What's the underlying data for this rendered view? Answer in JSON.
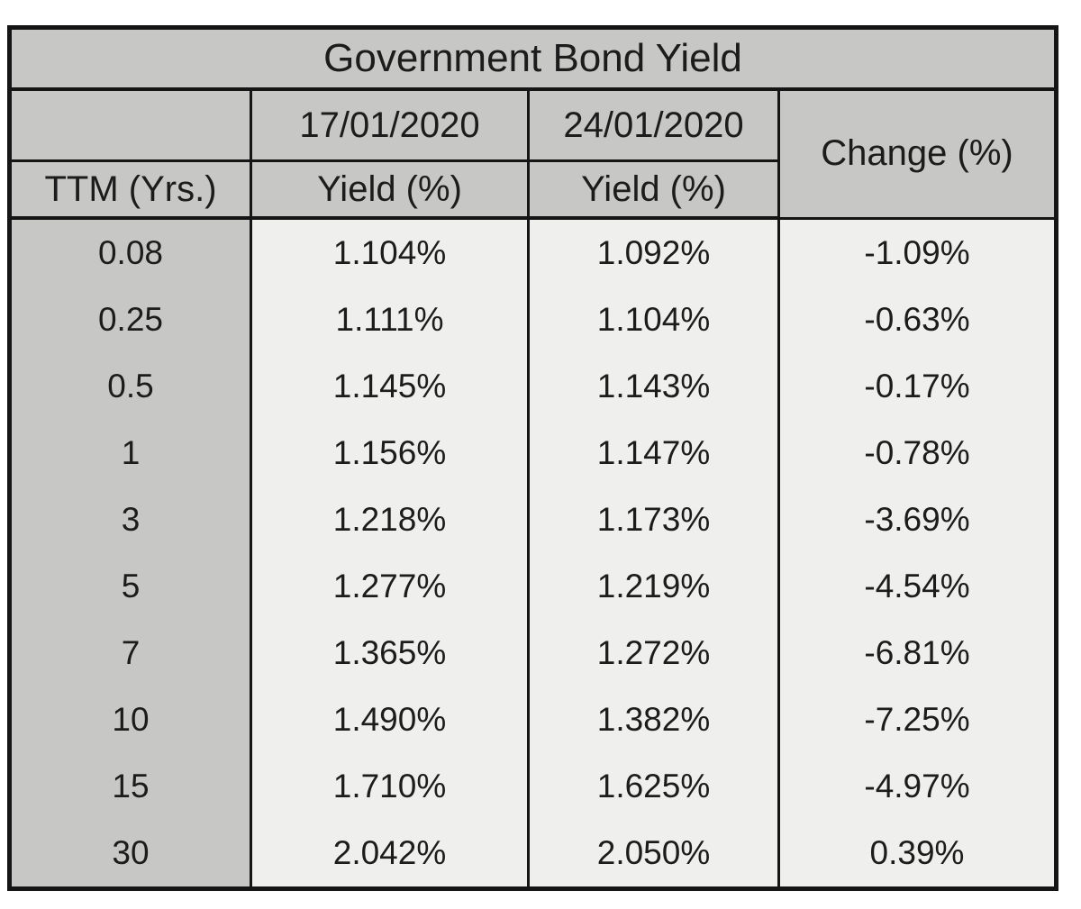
{
  "title": "Government Bond Yield",
  "header": {
    "ttm_label": "TTM (Yrs.)",
    "date1": "17/01/2020",
    "date2": "24/01/2020",
    "yield_label_1": "Yield (%)",
    "yield_label_2": "Yield (%)",
    "change_label": "Change (%)"
  },
  "rows": [
    {
      "ttm": "0.08",
      "yield1": "1.104%",
      "yield2": "1.092%",
      "change": "-1.09%"
    },
    {
      "ttm": "0.25",
      "yield1": "1.111%",
      "yield2": "1.104%",
      "change": "-0.63%"
    },
    {
      "ttm": "0.5",
      "yield1": "1.145%",
      "yield2": "1.143%",
      "change": "-0.17%"
    },
    {
      "ttm": "1",
      "yield1": "1.156%",
      "yield2": "1.147%",
      "change": "-0.78%"
    },
    {
      "ttm": "3",
      "yield1": "1.218%",
      "yield2": "1.173%",
      "change": "-3.69%"
    },
    {
      "ttm": "5",
      "yield1": "1.277%",
      "yield2": "1.219%",
      "change": "-4.54%"
    },
    {
      "ttm": "7",
      "yield1": "1.365%",
      "yield2": "1.272%",
      "change": "-6.81%"
    },
    {
      "ttm": "10",
      "yield1": "1.490%",
      "yield2": "1.382%",
      "change": "-7.25%"
    },
    {
      "ttm": "15",
      "yield1": "1.710%",
      "yield2": "1.625%",
      "change": "-4.97%"
    },
    {
      "ttm": "30",
      "yield1": "2.042%",
      "yield2": "2.050%",
      "change": "0.39%"
    }
  ],
  "colors": {
    "header_gray": "#c7c7c5",
    "body_light": "#efefed",
    "border_black": "#151515",
    "text": "#1c1c1c"
  },
  "chart_data": {
    "type": "table",
    "title": "Government Bond Yield",
    "columns": [
      "TTM (Yrs.)",
      "17/01/2020 Yield (%)",
      "24/01/2020 Yield (%)",
      "Change (%)"
    ],
    "ttm_years": [
      0.08,
      0.25,
      0.5,
      1,
      3,
      5,
      7,
      10,
      15,
      30
    ],
    "yield_2020_01_17_pct": [
      1.104,
      1.111,
      1.145,
      1.156,
      1.218,
      1.277,
      1.365,
      1.49,
      1.71,
      2.042
    ],
    "yield_2020_01_24_pct": [
      1.092,
      1.104,
      1.143,
      1.147,
      1.173,
      1.219,
      1.272,
      1.382,
      1.625,
      2.05
    ],
    "change_pct": [
      -1.09,
      -0.63,
      -0.17,
      -0.78,
      -3.69,
      -4.54,
      -6.81,
      -7.25,
      -4.97,
      0.39
    ]
  }
}
